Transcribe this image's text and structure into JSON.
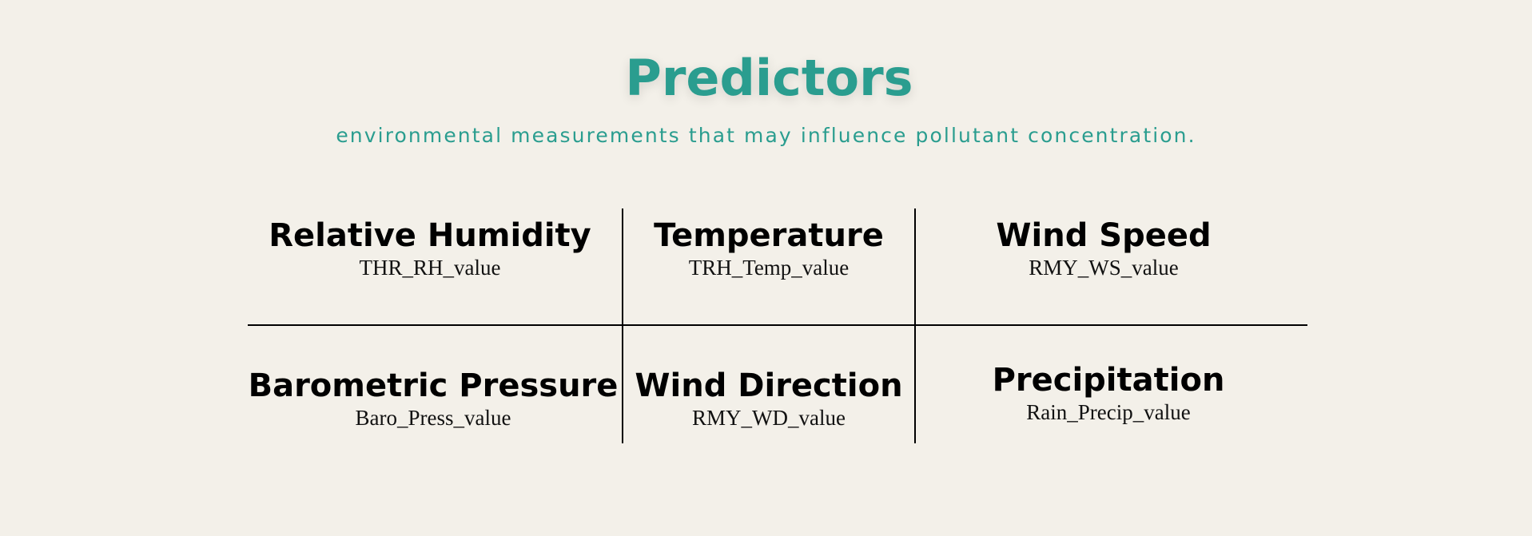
{
  "header": {
    "title": "Predictors",
    "subtitle": "environmental measurements that may influence pollutant concentration."
  },
  "predictors": [
    {
      "name": "Relative Humidity",
      "variable": "THR_RH_value"
    },
    {
      "name": "Temperature",
      "variable": "TRH_Temp_value"
    },
    {
      "name": "Wind Speed",
      "variable": "RMY_WS_value"
    },
    {
      "name": "Barometric Pressure",
      "variable": "Baro_Press_value"
    },
    {
      "name": "Wind Direction",
      "variable": "RMY_WD_value"
    },
    {
      "name": "Precipitation",
      "variable": "Rain_Precip_value"
    }
  ],
  "colors": {
    "background": "#f3f0e9",
    "accent": "#2a9d8f",
    "text": "#000000"
  }
}
